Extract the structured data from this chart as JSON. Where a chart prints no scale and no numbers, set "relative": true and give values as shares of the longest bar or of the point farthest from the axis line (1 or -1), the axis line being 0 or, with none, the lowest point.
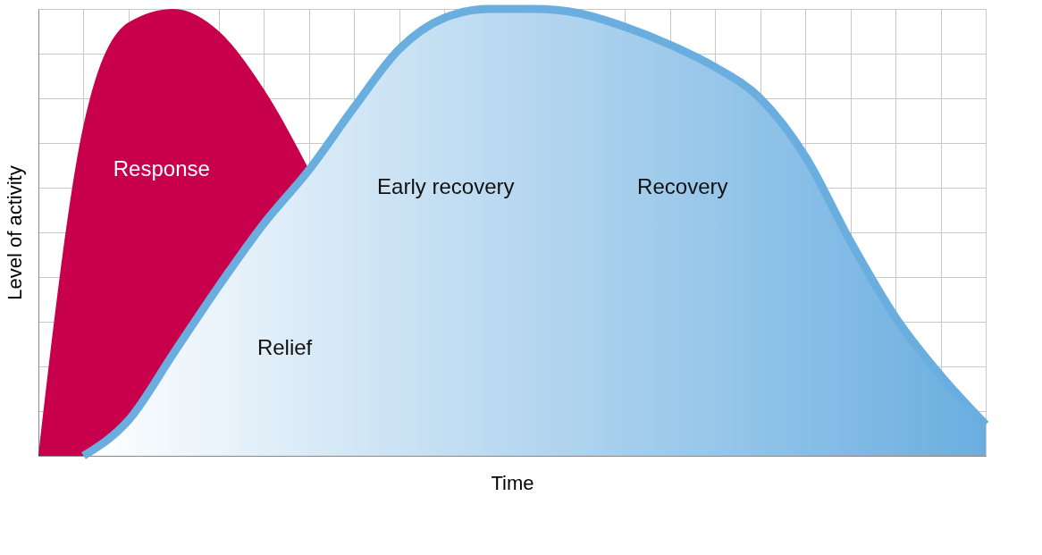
{
  "chart_data": {
    "type": "area",
    "relative": true,
    "xlabel": "Time",
    "ylabel": "Level of activity",
    "grid": true,
    "categories": [
      null,
      null,
      null,
      null,
      null,
      null,
      null,
      null,
      null,
      null,
      null,
      null,
      null,
      null,
      null,
      null,
      null,
      null,
      null,
      null,
      null,
      null
    ],
    "series": [
      {
        "name": "Response",
        "color": "#c8004b",
        "values": [
          0,
          0.74,
          0.97,
          1.0,
          0.95,
          0.82,
          0.64,
          null,
          null,
          null,
          null,
          null,
          null,
          null,
          null,
          null,
          null,
          null,
          null,
          null,
          null,
          null
        ]
      },
      {
        "color": "#6aaee0",
        "values": [
          null,
          0,
          0.08,
          0.23,
          0.38,
          0.52,
          0.64,
          0.78,
          0.91,
          0.98,
          1.0,
          1.0,
          0.99,
          0.96,
          0.92,
          0.87,
          0.8,
          0.67,
          0.48,
          0.31,
          0.18,
          0.07
        ]
      }
    ],
    "annotations": [
      "Early recovery",
      "Recovery",
      "Relief"
    ]
  }
}
